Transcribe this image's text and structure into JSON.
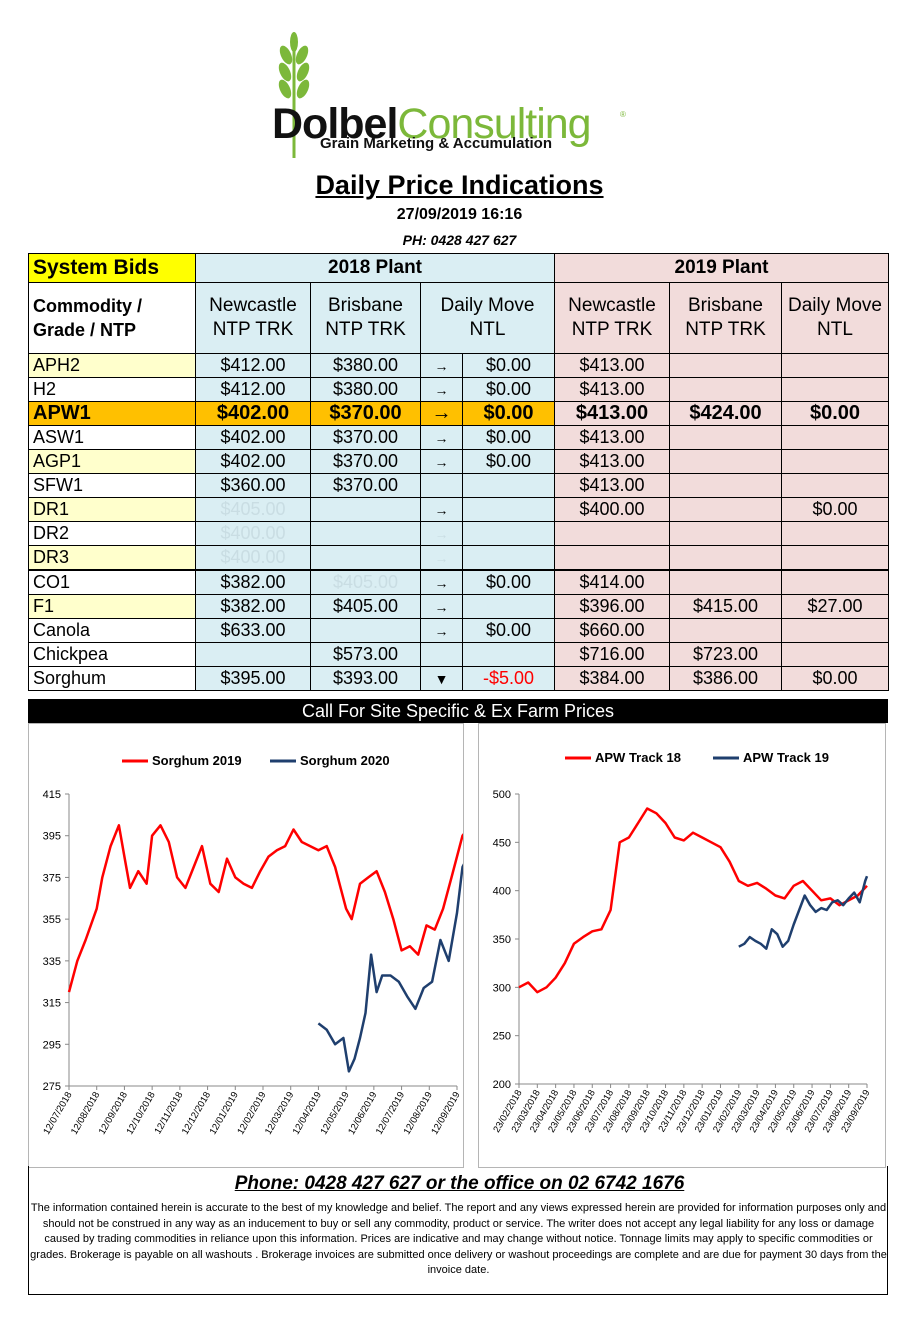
{
  "logo": {
    "brand_bold": "Dolbel",
    "brand_light": "Consulting",
    "registered": "®",
    "tagline": "Grain Marketing & Accumulation"
  },
  "header": {
    "title": "Daily Price Indications",
    "datetime": "27/09/2019 16:16",
    "phone": "PH: 0428 427 627"
  },
  "table": {
    "system_bids": "System Bids",
    "plant_2018": "2018 Plant",
    "plant_2019": "2019 Plant",
    "col_commodity": "Commodity / Grade / NTP",
    "col_newcastle_18": "Newcastle NTP TRK",
    "col_brisbane_18": "Brisbane NTP TRK",
    "col_daily_move_18": "Daily  Move NTL",
    "col_newcastle_19": "Newcastle NTP TRK",
    "col_brisbane_19": "Brisbane NTP TRK",
    "col_daily_move_19": "Daily Move NTL",
    "rows": [
      {
        "name": "APH2",
        "n18": "$412.00",
        "b18": "$380.00",
        "arrow": "→",
        "move18": "$0.00",
        "n19": "$413.00",
        "b19": "",
        "move19": "",
        "style": "yl"
      },
      {
        "name": "H2",
        "n18": "$412.00",
        "b18": "$380.00",
        "arrow": "→",
        "move18": "$0.00",
        "n19": "$413.00",
        "b19": "",
        "move19": "",
        "style": ""
      },
      {
        "name": "APW1",
        "n18": "$402.00",
        "b18": "$370.00",
        "arrow": "→",
        "move18": "$0.00",
        "n19": "$413.00",
        "b19": "$424.00",
        "move19": "$0.00",
        "style": "apw"
      },
      {
        "name": "ASW1",
        "n18": "$402.00",
        "b18": "$370.00",
        "arrow": "→",
        "move18": "$0.00",
        "n19": "$413.00",
        "b19": "",
        "move19": "",
        "style": ""
      },
      {
        "name": "AGP1",
        "n18": "$402.00",
        "b18": "$370.00",
        "arrow": "→",
        "move18": "$0.00",
        "n19": "$413.00",
        "b19": "",
        "move19": "",
        "style": "yl"
      },
      {
        "name": "SFW1",
        "n18": "$360.00",
        "b18": "$370.00",
        "arrow": "",
        "move18": "",
        "n19": "$413.00",
        "b19": "",
        "move19": "",
        "style": ""
      },
      {
        "name": "DR1",
        "n18": "$405.00",
        "b18": "",
        "arrow": "→",
        "move18": "",
        "n19": "$400.00",
        "b19": "",
        "move19": "$0.00",
        "style": "yl",
        "faint_n18": true
      },
      {
        "name": "DR2",
        "n18": "$400.00",
        "b18": "",
        "arrow": "→",
        "move18": "",
        "n19": "",
        "b19": "",
        "move19": "",
        "style": "",
        "faint_n18": true
      },
      {
        "name": "DR3",
        "n18": "$400.00",
        "b18": "",
        "arrow": "→",
        "move18": "",
        "n19": "",
        "b19": "",
        "move19": "",
        "style": "yl",
        "faint_n18": true
      },
      {
        "name": "CO1",
        "n18": "$382.00",
        "b18": "$405.00",
        "arrow": "→",
        "move18": "$0.00",
        "n19": "$414.00",
        "b19": "",
        "move19": "",
        "style": "",
        "faint_b18": true
      },
      {
        "name": "F1",
        "n18": "$382.00",
        "b18": "$405.00",
        "arrow": "→",
        "move18": "",
        "n19": "$396.00",
        "b19": "$415.00",
        "move19": "$27.00",
        "style": "yl"
      },
      {
        "name": "Canola",
        "n18": "$633.00",
        "b18": "",
        "arrow": "→",
        "move18": "$0.00",
        "n19": "$660.00",
        "b19": "",
        "move19": "",
        "style": ""
      },
      {
        "name": "Chickpea",
        "n18": "",
        "b18": "$573.00",
        "arrow": "",
        "move18": "",
        "n19": "$716.00",
        "b19": "$723.00",
        "move19": "",
        "style": ""
      },
      {
        "name": "Sorghum",
        "n18": "$395.00",
        "b18": "$393.00",
        "arrow": "▼",
        "move18": "-$5.00",
        "n19": "$384.00",
        "b19": "$386.00",
        "move19": "$0.00",
        "style": "",
        "neg": true
      }
    ]
  },
  "call_bar": "Call For Site Specific & Ex Farm Prices",
  "footer": {
    "phone": "Phone: 0428 427 627 or the office on 02 6742 1676",
    "disclaimer": "The information contained herein is accurate to the best of my knowledge and belief.  The report and any views expressed herein are provided for information purposes only and should not be construed in any way as an inducement to buy or sell any commodity, product or service. The writer does not accept any legal liability for any loss or damage caused by trading commodities in reliance upon this information. Prices are indicative and may change without notice. Tonnage limits may apply to specific commodities or grades.  Brokerage is payable on all washouts . Brokerage invoices are submitted once delivery or washout proceedings are complete and are due for payment 30 days from the invoice date."
  },
  "chart_data": [
    {
      "type": "line",
      "title": "",
      "colors": {
        "Sorghum 2019": "#ff0000",
        "Sorghum 2020": "#1f3f6e"
      },
      "ylim": [
        275,
        415
      ],
      "yticks": [
        275,
        295,
        315,
        335,
        355,
        375,
        395,
        415
      ],
      "x_tick_labels": [
        "12/07/2018",
        "12/08/2018",
        "12/09/2018",
        "12/10/2018",
        "12/11/2018",
        "12/12/2018",
        "12/01/2019",
        "12/02/2019",
        "12/03/2019",
        "12/04/2019",
        "12/05/2019",
        "12/06/2019",
        "12/07/2019",
        "12/08/2019",
        "12/09/2019"
      ],
      "series": [
        {
          "name": "Sorghum 2019",
          "x": [
            0,
            0.3,
            0.6,
            1,
            1.2,
            1.5,
            1.8,
            2,
            2.2,
            2.5,
            2.8,
            3,
            3.3,
            3.6,
            3.9,
            4.2,
            4.5,
            4.8,
            5.1,
            5.4,
            5.7,
            6,
            6.3,
            6.6,
            6.9,
            7.2,
            7.5,
            7.8,
            8.1,
            8.4,
            8.7,
            9,
            9.3,
            9.6,
            9.8,
            10,
            10.2,
            10.5,
            10.8,
            11.1,
            11.4,
            11.7,
            12,
            12.3,
            12.6,
            12.9,
            13.2,
            13.5,
            13.8,
            14,
            14.2,
            14.5
          ],
          "y": [
            320,
            335,
            345,
            360,
            375,
            390,
            400,
            385,
            370,
            378,
            372,
            395,
            400,
            392,
            375,
            370,
            380,
            390,
            372,
            368,
            384,
            375,
            372,
            370,
            378,
            385,
            388,
            390,
            398,
            392,
            390,
            388,
            390,
            380,
            370,
            360,
            355,
            372,
            375,
            378,
            368,
            355,
            340,
            342,
            338,
            352,
            350,
            360,
            375,
            385,
            395,
            400
          ]
        },
        {
          "name": "Sorghum 2020",
          "x": [
            9,
            9.3,
            9.6,
            9.9,
            10.1,
            10.3,
            10.5,
            10.7,
            10.9,
            11.1,
            11.3,
            11.6,
            11.9,
            12.2,
            12.5,
            12.8,
            13.1,
            13.4,
            13.7,
            14,
            14.2,
            14.4,
            14.5
          ],
          "y": [
            305,
            302,
            295,
            298,
            282,
            288,
            298,
            310,
            338,
            320,
            328,
            328,
            325,
            318,
            312,
            322,
            325,
            345,
            335,
            358,
            380,
            385,
            390
          ]
        }
      ]
    },
    {
      "type": "line",
      "title": "",
      "colors": {
        "APW Track 18": "#ff0000",
        "APW Track 19": "#1f3f6e"
      },
      "ylim": [
        200,
        500
      ],
      "yticks": [
        200,
        250,
        300,
        350,
        400,
        450,
        500
      ],
      "x_tick_labels": [
        "23/02/2018",
        "23/03/2018",
        "23/04/2018",
        "23/05/2018",
        "23/06/2018",
        "23/07/2018",
        "23/08/2018",
        "23/09/2018",
        "23/10/2018",
        "23/11/2018",
        "23/12/2018",
        "23/01/2019",
        "23/02/2019",
        "23/03/2019",
        "23/04/2019",
        "23/05/2019",
        "23/06/2019",
        "23/07/2019",
        "23/08/2019",
        "23/09/2019"
      ],
      "series": [
        {
          "name": "APW Track 18",
          "x": [
            0,
            0.5,
            1,
            1.5,
            2,
            2.5,
            3,
            3.5,
            4,
            4.5,
            5,
            5.5,
            6,
            6.5,
            7,
            7.5,
            8,
            8.5,
            9,
            9.5,
            10,
            10.5,
            11,
            11.5,
            12,
            12.5,
            13,
            13.5,
            14,
            14.5,
            15,
            15.5,
            16,
            16.5,
            17,
            17.5,
            18,
            18.5,
            19
          ],
          "y": [
            300,
            305,
            295,
            300,
            310,
            325,
            345,
            352,
            358,
            360,
            380,
            450,
            455,
            470,
            485,
            480,
            470,
            455,
            452,
            460,
            455,
            450,
            445,
            430,
            410,
            405,
            408,
            402,
            395,
            392,
            405,
            410,
            400,
            390,
            392,
            385,
            390,
            395,
            405
          ]
        },
        {
          "name": "APW Track 19",
          "x": [
            12,
            12.3,
            12.6,
            12.9,
            13.2,
            13.5,
            13.8,
            14.1,
            14.4,
            14.7,
            15,
            15.3,
            15.6,
            15.9,
            16.2,
            16.5,
            16.8,
            17.1,
            17.4,
            17.7,
            18,
            18.3,
            18.6,
            18.9,
            19
          ],
          "y": [
            342,
            345,
            352,
            348,
            345,
            340,
            360,
            355,
            342,
            348,
            365,
            380,
            395,
            385,
            378,
            382,
            380,
            388,
            390,
            385,
            392,
            398,
            388,
            410,
            415
          ]
        }
      ]
    }
  ]
}
